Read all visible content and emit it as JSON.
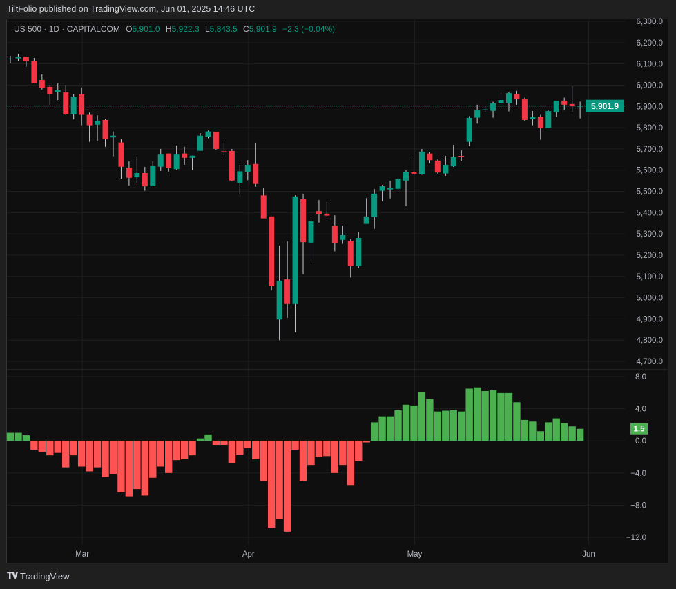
{
  "header": {
    "title": "TiltFolio published on TradingView.com, Jun 01, 2025 14:46 UTC"
  },
  "legend": {
    "symbol": "US 500 · 1D · CAPITALCOM",
    "o_label": "O",
    "o_value": "5,901.0",
    "h_label": "H",
    "h_value": "5,922.3",
    "l_label": "L",
    "l_value": "5,843.5",
    "c_label": "C",
    "c_value": "5,901.9",
    "change": "−2.3 (−0.04%)"
  },
  "colors": {
    "up": "#089981",
    "down": "#f23645",
    "hist_up": "#4caf50",
    "hist_down": "#ff5252",
    "background": "#0f0f0f"
  },
  "footer": {
    "logo_text": "TradingView",
    "logo_icon": "tradingview-logo-icon"
  },
  "chart_data": [
    {
      "type": "candlestick",
      "symbol": "US 500",
      "interval": "1D",
      "ylim": [
        4700,
        6300
      ],
      "y_ticks": [
        "6,300.0",
        "6,200.0",
        "6,100.0",
        "6,000.0",
        "5,900.0",
        "5,800.0",
        "5,700.0",
        "5,600.0",
        "5,500.0",
        "5,400.0",
        "5,300.0",
        "5,200.0",
        "5,100.0",
        "5,000.0",
        "4,900.0",
        "4,800.0",
        "4,700.0"
      ],
      "y_tick_values": [
        6300,
        6200,
        6100,
        6000,
        5900,
        5800,
        5700,
        5600,
        5500,
        5400,
        5300,
        5200,
        5100,
        5000,
        4900,
        4800,
        4700
      ],
      "x_ticks": [
        {
          "label": "Mar",
          "bar": 9
        },
        {
          "label": "Apr",
          "bar": 30
        },
        {
          "label": "May",
          "bar": 51
        },
        {
          "label": "Jun",
          "bar": 73
        }
      ],
      "last_price": 5901.9,
      "last_price_label": "5,901.9",
      "grid": true,
      "ohlc": [
        [
          6122,
          6138,
          6102,
          6125
        ],
        [
          6126,
          6147,
          6115,
          6134
        ],
        [
          6134,
          6135,
          6087,
          6113
        ],
        [
          6115,
          6128,
          6008,
          6009
        ],
        [
          6024,
          6050,
          5979,
          5986
        ],
        [
          5992,
          6002,
          5908,
          5959
        ],
        [
          5968,
          6008,
          5930,
          5976
        ],
        [
          5966,
          6000,
          5860,
          5862
        ],
        [
          5865,
          5959,
          5839,
          5946
        ],
        [
          5956,
          5989,
          5811,
          5860
        ],
        [
          5860,
          5871,
          5733,
          5811
        ],
        [
          5814,
          5858,
          5738,
          5832
        ],
        [
          5836,
          5842,
          5710,
          5746
        ],
        [
          5754,
          5782,
          5665,
          5762
        ],
        [
          5730,
          5745,
          5560,
          5616
        ],
        [
          5612,
          5641,
          5527,
          5564
        ],
        [
          5568,
          5665,
          5540,
          5586
        ],
        [
          5586,
          5615,
          5503,
          5524
        ],
        [
          5527,
          5641,
          5524,
          5622
        ],
        [
          5616,
          5700,
          5596,
          5673
        ],
        [
          5678,
          5678,
          5593,
          5609
        ],
        [
          5605,
          5716,
          5600,
          5673
        ],
        [
          5678,
          5710,
          5625,
          5658
        ],
        [
          5658,
          5668,
          5600,
          5668
        ],
        [
          5691,
          5774,
          5691,
          5762
        ],
        [
          5758,
          5786,
          5750,
          5782
        ],
        [
          5781,
          5781,
          5696,
          5700
        ],
        [
          5689,
          5730,
          5670,
          5686
        ],
        [
          5690,
          5700,
          5548,
          5551
        ],
        [
          5540,
          5625,
          5486,
          5594
        ],
        [
          5592,
          5647,
          5553,
          5625
        ],
        [
          5629,
          5726,
          5522,
          5535
        ],
        [
          5481,
          5518,
          5373,
          5373
        ],
        [
          5382,
          5382,
          5035,
          5054
        ],
        [
          4897,
          5245,
          4800,
          5080
        ],
        [
          5086,
          5265,
          4905,
          4970
        ],
        [
          4970,
          5481,
          4837,
          5476
        ],
        [
          5463,
          5489,
          5110,
          5261
        ],
        [
          5259,
          5380,
          5171,
          5359
        ],
        [
          5407,
          5459,
          5353,
          5392
        ],
        [
          5395,
          5450,
          5378,
          5386
        ],
        [
          5339,
          5387,
          5218,
          5258
        ],
        [
          5272,
          5339,
          5253,
          5294
        ],
        [
          5265,
          5275,
          5095,
          5149
        ],
        [
          5149,
          5307,
          5139,
          5281
        ],
        [
          5347,
          5468,
          5347,
          5382
        ],
        [
          5379,
          5511,
          5324,
          5489
        ],
        [
          5503,
          5530,
          5454,
          5524
        ],
        [
          5509,
          5550,
          5467,
          5518
        ],
        [
          5512,
          5570,
          5496,
          5557
        ],
        [
          5551,
          5600,
          5431,
          5592
        ],
        [
          5592,
          5657,
          5580,
          5583
        ],
        [
          5580,
          5700,
          5578,
          5687
        ],
        [
          5678,
          5685,
          5632,
          5647
        ],
        [
          5645,
          5650,
          5584,
          5589
        ],
        [
          5584,
          5667,
          5573,
          5625
        ],
        [
          5618,
          5719,
          5615,
          5661
        ],
        [
          5667,
          5693,
          5644,
          5662
        ],
        [
          5733,
          5854,
          5713,
          5846
        ],
        [
          5847,
          5908,
          5819,
          5881
        ],
        [
          5885,
          5903,
          5873,
          5886
        ],
        [
          5879,
          5922,
          5847,
          5914
        ],
        [
          5915,
          5960,
          5905,
          5930
        ],
        [
          5915,
          5968,
          5876,
          5962
        ],
        [
          5959,
          5973,
          5908,
          5933
        ],
        [
          5933,
          5941,
          5830,
          5836
        ],
        [
          5840,
          5878,
          5811,
          5849
        ],
        [
          5852,
          5860,
          5743,
          5798
        ],
        [
          5798,
          5880,
          5798,
          5878
        ],
        [
          5873,
          5927,
          5851,
          5927
        ],
        [
          5927,
          5941,
          5881,
          5908
        ],
        [
          5911,
          5995,
          5873,
          5901
        ],
        [
          5901.0,
          5922.3,
          5843.5,
          5901.9
        ]
      ]
    },
    {
      "type": "bar",
      "ylim": [
        -12,
        8
      ],
      "y_ticks": [
        "8.0",
        "4.0",
        "0.0",
        "−4.0",
        "−8.0",
        "−12.0"
      ],
      "y_tick_values": [
        8,
        4,
        0,
        -4,
        -8,
        -12
      ],
      "last_value": 1.5,
      "last_value_label": "1.5",
      "values": [
        1.0,
        1.0,
        0.7,
        -1.1,
        -1.4,
        -1.8,
        -1.5,
        -3.3,
        -1.8,
        -3.2,
        -3.8,
        -3.3,
        -4.5,
        -4.1,
        -6.4,
        -6.9,
        -6.0,
        -6.8,
        -4.6,
        -3.2,
        -4.0,
        -2.4,
        -2.3,
        -1.8,
        0.3,
        0.8,
        -0.5,
        -0.5,
        -2.8,
        -1.7,
        -0.9,
        -2.3,
        -5.0,
        -10.8,
        -9.7,
        -11.3,
        -1.1,
        -5.0,
        -3.0,
        -2.0,
        -1.9,
        -4.0,
        -3.0,
        -5.5,
        -2.5,
        -0.2,
        2.3,
        3.05,
        3.05,
        3.8,
        4.5,
        4.4,
        6.1,
        5.2,
        3.65,
        3.75,
        3.8,
        3.65,
        6.5,
        6.65,
        6.2,
        6.3,
        5.95,
        5.95,
        4.8,
        2.6,
        2.4,
        1.2,
        2.3,
        2.8,
        2.2,
        1.8,
        1.5
      ]
    }
  ]
}
